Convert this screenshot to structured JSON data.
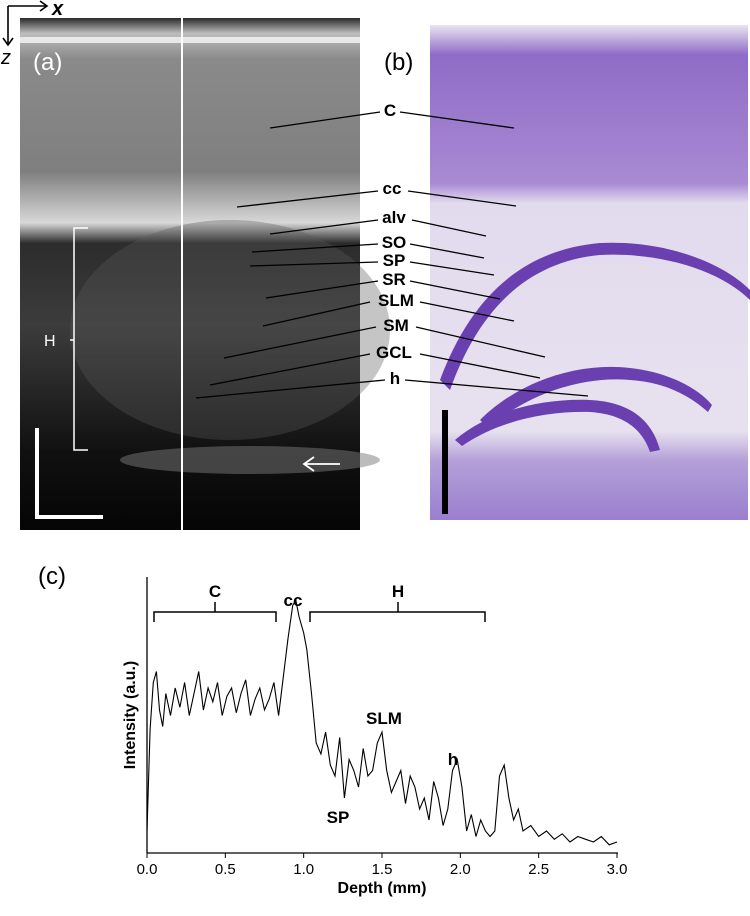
{
  "axes_indicator": {
    "x": "x",
    "z": "z"
  },
  "panels": {
    "a": "(a)",
    "b": "(b)",
    "c": "(c)"
  },
  "oct_labels": {
    "H": "H"
  },
  "layer_labels": [
    "C",
    "cc",
    "alv",
    "SO",
    "SP",
    "SR",
    "SLM",
    "SM",
    "GCL",
    "h"
  ],
  "chart_data": {
    "type": "line",
    "xlabel": "Depth (mm)",
    "ylabel": "Intensity (a.u.)",
    "xlim": [
      0.0,
      3.0
    ],
    "xticks": [
      "0.0",
      "0.5",
      "1.0",
      "1.5",
      "2.0",
      "2.5",
      "3.0"
    ],
    "annotations": [
      "C",
      "cc",
      "H",
      "SLM",
      "SP",
      "h"
    ],
    "series": [
      {
        "x": [
          0.0,
          0.02,
          0.04,
          0.06,
          0.08,
          0.1,
          0.12,
          0.15,
          0.18,
          0.21,
          0.24,
          0.27,
          0.3,
          0.33,
          0.36,
          0.39,
          0.42,
          0.45,
          0.48,
          0.51,
          0.54,
          0.57,
          0.6,
          0.63,
          0.66,
          0.69,
          0.72,
          0.75,
          0.78,
          0.81,
          0.84,
          0.87,
          0.9,
          0.93,
          0.95,
          0.97,
          1.0,
          1.02,
          1.05,
          1.08,
          1.11,
          1.14,
          1.17,
          1.2,
          1.23,
          1.26,
          1.29,
          1.32,
          1.35,
          1.38,
          1.41,
          1.44,
          1.47,
          1.5,
          1.53,
          1.56,
          1.59,
          1.62,
          1.65,
          1.68,
          1.71,
          1.74,
          1.77,
          1.8,
          1.83,
          1.86,
          1.89,
          1.92,
          1.95,
          1.98,
          2.01,
          2.04,
          2.07,
          2.1,
          2.13,
          2.16,
          2.19,
          2.22,
          2.25,
          2.28,
          2.31,
          2.34,
          2.37,
          2.4,
          2.45,
          2.5,
          2.55,
          2.6,
          2.65,
          2.7,
          2.75,
          2.8,
          2.85,
          2.9,
          2.95,
          3.0
        ],
        "y": [
          0.08,
          0.45,
          0.62,
          0.66,
          0.52,
          0.46,
          0.58,
          0.5,
          0.6,
          0.53,
          0.62,
          0.5,
          0.58,
          0.66,
          0.52,
          0.6,
          0.55,
          0.62,
          0.5,
          0.57,
          0.6,
          0.51,
          0.58,
          0.63,
          0.5,
          0.56,
          0.6,
          0.52,
          0.56,
          0.62,
          0.5,
          0.64,
          0.78,
          0.9,
          0.92,
          0.86,
          0.8,
          0.74,
          0.58,
          0.4,
          0.36,
          0.44,
          0.32,
          0.28,
          0.42,
          0.2,
          0.34,
          0.3,
          0.24,
          0.38,
          0.28,
          0.3,
          0.4,
          0.44,
          0.3,
          0.22,
          0.26,
          0.3,
          0.18,
          0.28,
          0.24,
          0.16,
          0.2,
          0.12,
          0.26,
          0.2,
          0.1,
          0.16,
          0.3,
          0.34,
          0.24,
          0.08,
          0.14,
          0.06,
          0.12,
          0.08,
          0.06,
          0.08,
          0.28,
          0.32,
          0.2,
          0.12,
          0.16,
          0.08,
          0.1,
          0.06,
          0.08,
          0.05,
          0.07,
          0.04,
          0.06,
          0.05,
          0.04,
          0.06,
          0.03,
          0.04
        ]
      }
    ]
  },
  "colors": {
    "stain": "#6a3fb0",
    "stain_light": "#efe7f5",
    "oct_bg": "#0d0d0d"
  }
}
